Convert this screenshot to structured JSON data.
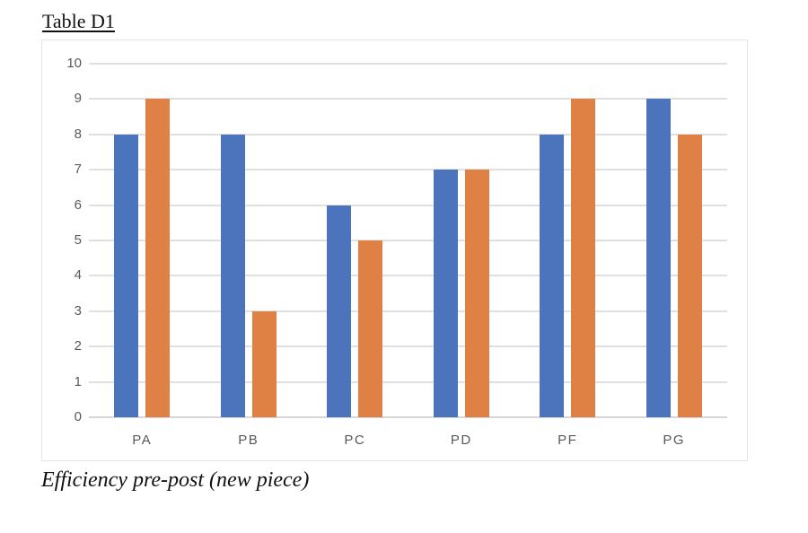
{
  "title": "Table D1",
  "caption": "Efficiency pre-post (new piece)",
  "colors": {
    "pre_bar": "#4C74BC",
    "post_bar": "#DF8144",
    "gridline": "#e0e0e0",
    "axis_line": "#d6d6d6",
    "tick_label": "#595959",
    "chart_border": "#e4e4e4"
  },
  "chart_data": {
    "type": "bar",
    "title": "Table D1",
    "caption": "Efficiency pre-post (new piece)",
    "categories": [
      "PA",
      "PB",
      "PC",
      "PD",
      "PF",
      "PG"
    ],
    "series": [
      {
        "name": "pre",
        "color": "#4C74BC",
        "values": [
          8,
          8,
          6,
          7,
          8,
          9
        ]
      },
      {
        "name": "post",
        "color": "#DF8144",
        "values": [
          9,
          3,
          5,
          7,
          9,
          8
        ]
      }
    ],
    "xlabel": "",
    "ylabel": "",
    "ylim": [
      0,
      10
    ],
    "ytick_step": 1,
    "yticks": [
      0,
      1,
      2,
      3,
      4,
      5,
      6,
      7,
      8,
      9,
      10
    ],
    "grid": true,
    "legend_position": "none"
  }
}
